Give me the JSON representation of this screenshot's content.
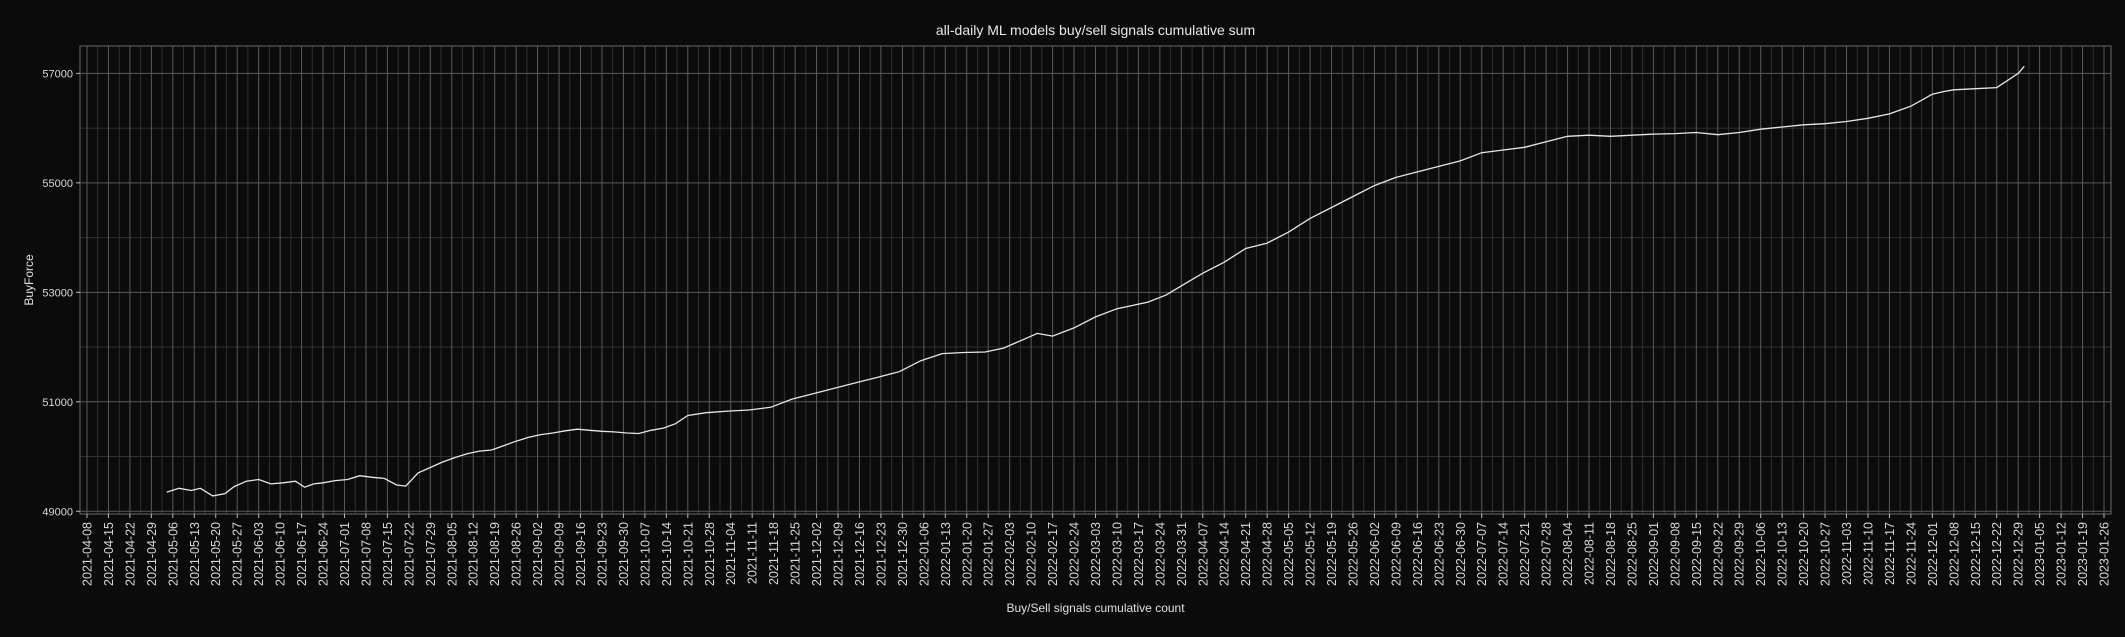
{
  "chart_data": {
    "type": "line",
    "title": "all-daily ML models buy/sell signals cumulative sum",
    "xlabel": "Buy/Sell signals cumulative count",
    "ylabel": "BuyForce",
    "xlim": [
      "2021-04-08",
      "2023-01-26"
    ],
    "ylim": [
      48950,
      57500
    ],
    "yticks": [
      49000,
      51000,
      53000,
      55000,
      57000
    ],
    "xticks": [
      "2021-04-08",
      "2021-04-15",
      "2021-04-22",
      "2021-04-29",
      "2021-05-06",
      "2021-05-13",
      "2021-05-20",
      "2021-05-27",
      "2021-06-03",
      "2021-06-10",
      "2021-06-17",
      "2021-06-24",
      "2021-07-01",
      "2021-07-08",
      "2021-07-15",
      "2021-07-22",
      "2021-07-29",
      "2021-08-05",
      "2021-08-12",
      "2021-08-19",
      "2021-08-26",
      "2021-09-02",
      "2021-09-09",
      "2021-09-16",
      "2021-09-23",
      "2021-09-30",
      "2021-10-07",
      "2021-10-14",
      "2021-10-21",
      "2021-10-28",
      "2021-11-04",
      "2021-11-11",
      "2021-11-18",
      "2021-11-25",
      "2021-12-02",
      "2021-12-09",
      "2021-12-16",
      "2021-12-23",
      "2021-12-30",
      "2022-01-06",
      "2022-01-13",
      "2022-01-20",
      "2022-01-27",
      "2022-02-03",
      "2022-02-10",
      "2022-02-17",
      "2022-02-24",
      "2022-03-03",
      "2022-03-10",
      "2022-03-17",
      "2022-03-24",
      "2022-03-31",
      "2022-04-07",
      "2022-04-14",
      "2022-04-21",
      "2022-04-28",
      "2022-05-05",
      "2022-05-12",
      "2022-05-19",
      "2022-05-26",
      "2022-06-02",
      "2022-06-09",
      "2022-06-16",
      "2022-06-23",
      "2022-06-30",
      "2022-07-07",
      "2022-07-14",
      "2022-07-21",
      "2022-07-28",
      "2022-08-04",
      "2022-08-11",
      "2022-08-18",
      "2022-08-25",
      "2022-09-01",
      "2022-09-08",
      "2022-09-15",
      "2022-09-22",
      "2022-09-29",
      "2022-10-06",
      "2022-10-13",
      "2022-10-20",
      "2022-10-27",
      "2022-11-03",
      "2022-11-10",
      "2022-11-17",
      "2022-11-24",
      "2022-12-01",
      "2022-12-08",
      "2022-12-15",
      "2022-12-22",
      "2022-12-29",
      "2023-01-05",
      "2023-01-12",
      "2023-01-19",
      "2023-01-26"
    ],
    "grid": true,
    "colors": {
      "background": "#0b0b0b",
      "panel": "#0b0b0b",
      "grid_major": "#5a5a5a",
      "grid_minor": "#303030",
      "line": "#e8e8e8",
      "text": "#e0e0e0"
    },
    "series": [
      {
        "x": [
          "2021-05-04",
          "2021-05-08",
          "2021-05-12",
          "2021-05-15",
          "2021-05-19",
          "2021-05-23",
          "2021-05-26",
          "2021-05-30",
          "2021-06-03",
          "2021-06-07",
          "2021-06-11",
          "2021-06-15",
          "2021-06-18",
          "2021-06-21",
          "2021-06-24",
          "2021-06-28",
          "2021-07-02",
          "2021-07-06",
          "2021-07-10",
          "2021-07-14",
          "2021-07-18",
          "2021-07-21",
          "2021-07-25",
          "2021-07-29",
          "2021-08-02",
          "2021-08-06",
          "2021-08-10",
          "2021-08-14",
          "2021-08-18",
          "2021-08-22",
          "2021-08-26",
          "2021-08-30",
          "2021-09-03",
          "2021-09-07",
          "2021-09-11",
          "2021-09-15",
          "2021-09-19",
          "2021-09-23",
          "2021-09-27",
          "2021-10-01",
          "2021-10-05",
          "2021-10-09",
          "2021-10-13",
          "2021-10-17",
          "2021-10-21",
          "2021-10-27",
          "2021-11-03",
          "2021-11-10",
          "2021-11-17",
          "2021-11-24",
          "2021-12-01",
          "2021-12-08",
          "2021-12-15",
          "2021-12-22",
          "2021-12-29",
          "2022-01-05",
          "2022-01-12",
          "2022-01-19",
          "2022-01-26",
          "2022-02-01",
          "2022-02-08",
          "2022-02-12",
          "2022-02-17",
          "2022-02-24",
          "2022-03-03",
          "2022-03-10",
          "2022-03-15",
          "2022-03-20",
          "2022-03-26",
          "2022-04-01",
          "2022-04-07",
          "2022-04-14",
          "2022-04-21",
          "2022-04-28",
          "2022-05-05",
          "2022-05-12",
          "2022-05-19",
          "2022-05-26",
          "2022-06-02",
          "2022-06-09",
          "2022-06-16",
          "2022-06-23",
          "2022-06-30",
          "2022-07-07",
          "2022-07-14",
          "2022-07-21",
          "2022-07-28",
          "2022-08-04",
          "2022-08-11",
          "2022-08-18",
          "2022-08-25",
          "2022-09-01",
          "2022-09-08",
          "2022-09-15",
          "2022-09-22",
          "2022-09-29",
          "2022-10-06",
          "2022-10-13",
          "2022-10-20",
          "2022-10-27",
          "2022-11-03",
          "2022-11-10",
          "2022-11-17",
          "2022-11-24",
          "2022-12-01",
          "2022-12-05",
          "2022-12-08",
          "2022-12-15",
          "2022-12-22",
          "2022-12-25",
          "2022-12-29",
          "2022-12-31"
        ],
        "values": [
          49350,
          49420,
          49380,
          49420,
          49280,
          49320,
          49450,
          49550,
          49580,
          49500,
          49520,
          49550,
          49440,
          49500,
          49520,
          49560,
          49580,
          49650,
          49620,
          49600,
          49480,
          49460,
          49700,
          49800,
          49900,
          49980,
          50050,
          50100,
          50120,
          50200,
          50280,
          50350,
          50400,
          50430,
          50470,
          50500,
          50480,
          50460,
          50450,
          50430,
          50420,
          50480,
          50520,
          50600,
          50750,
          50800,
          50830,
          50850,
          50900,
          51050,
          51150,
          51250,
          51350,
          51450,
          51550,
          51750,
          51880,
          51900,
          51910,
          51980,
          52150,
          52250,
          52200,
          52350,
          52550,
          52700,
          52760,
          52820,
          52950,
          53150,
          53350,
          53550,
          53800,
          53900,
          54100,
          54350,
          54550,
          54750,
          54950,
          55100,
          55200,
          55300,
          55400,
          55550,
          55600,
          55650,
          55750,
          55850,
          55870,
          55850,
          55870,
          55890,
          55900,
          55920,
          55880,
          55920,
          55980,
          56020,
          56060,
          56080,
          56120,
          56180,
          56260,
          56400,
          56620,
          56670,
          56700,
          56720,
          56740,
          56850,
          57000,
          57130
        ]
      }
    ]
  }
}
